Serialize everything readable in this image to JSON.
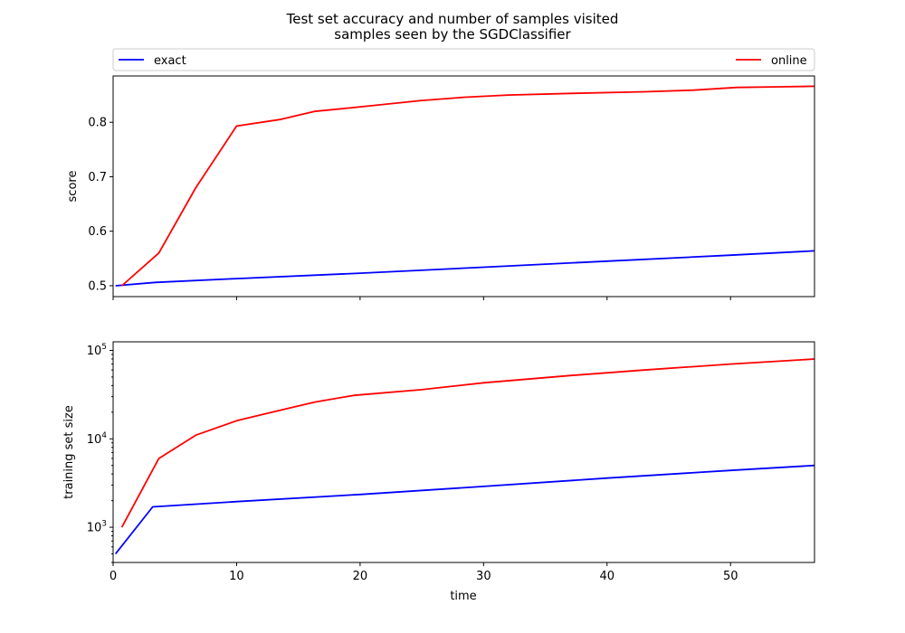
{
  "colors": {
    "exact": "#0000ff",
    "online": "#ff0000"
  },
  "chart_data": {
    "type": "line",
    "title": "Test set accuracy and number of samples visited\nsamples seen by the SGDClassifier",
    "title_lines": [
      "Test set accuracy and number of samples visited",
      "samples seen by the SGDClassifier"
    ],
    "xlabel": "time",
    "xlim": [
      0,
      56.8
    ],
    "xticks": [
      0,
      10,
      20,
      30,
      40,
      50
    ],
    "legend": {
      "placement": "top",
      "entries": [
        "exact",
        "online"
      ]
    },
    "panels": [
      {
        "ylabel": "score",
        "yscale": "linear",
        "ylim": [
          0.48,
          0.885
        ],
        "yticks": [
          0.5,
          0.6,
          0.7,
          0.8
        ],
        "ytick_labels": [
          "0.5",
          "0.6",
          "0.7",
          "0.8"
        ],
        "series": [
          {
            "name": "exact",
            "x": [
              0.2,
              3.4,
              10,
              20,
              30,
              40,
              50,
              56.8
            ],
            "y": [
              0.5,
              0.506,
              0.513,
              0.523,
              0.534,
              0.545,
              0.556,
              0.564
            ]
          },
          {
            "name": "online",
            "x": [
              0.7,
              3.7,
              6.7,
              10,
              13.5,
              16.3,
              19.5,
              25,
              28.5,
              32,
              37,
              43,
              47,
              50.5,
              54,
              56.8
            ],
            "y": [
              0.5,
              0.56,
              0.68,
              0.793,
              0.805,
              0.82,
              0.827,
              0.84,
              0.846,
              0.85,
              0.853,
              0.856,
              0.859,
              0.864,
              0.865,
              0.866
            ]
          }
        ]
      },
      {
        "ylabel": "training set size",
        "yscale": "log",
        "ylim": [
          400,
          125000
        ],
        "yticks": [
          1000,
          10000,
          100000
        ],
        "ytick_base": "10",
        "ytick_exponents": [
          "3",
          "4",
          "5"
        ],
        "series": [
          {
            "name": "exact",
            "x": [
              0.2,
              3.2,
              10,
              20,
              30,
              40,
              50,
              56.8
            ],
            "y": [
              500,
              1700,
              1950,
              2350,
              2900,
              3600,
              4400,
              5000
            ]
          },
          {
            "name": "online",
            "x": [
              0.7,
              3.7,
              6.7,
              10,
              13.5,
              16.3,
              19.5,
              25,
              30,
              37,
              43,
              50,
              56.8
            ],
            "y": [
              1000,
              6000,
              11000,
              16000,
              21000,
              26000,
              31000,
              36000,
              43000,
              52000,
              60000,
              70000,
              80000
            ]
          }
        ]
      }
    ]
  }
}
